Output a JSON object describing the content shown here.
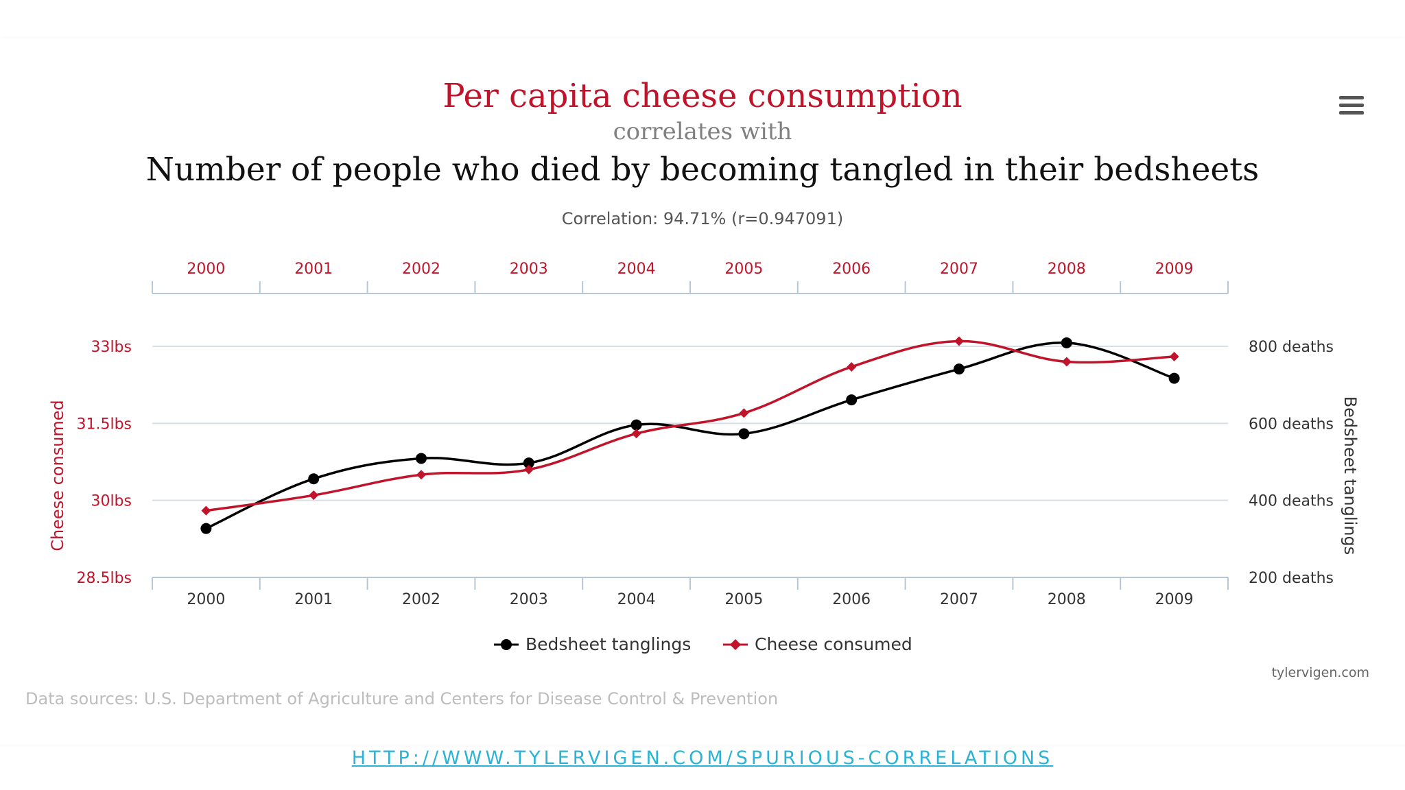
{
  "title": {
    "main": "Per capita cheese consumption",
    "connector": "correlates with",
    "second": "Number of people who died by becoming tangled in their bedsheets",
    "correlation": "Correlation: 94.71% (r=0.947091)"
  },
  "menu_icon": "hamburger-menu-icon",
  "credit": "tylervigen.com",
  "sources": "Data sources: U.S. Department of Agriculture and Centers for Disease Control & Prevention",
  "url": "HTTP://WWW.TYLERVIGEN.COM/SPURIOUS-CORRELATIONS",
  "colors": {
    "cheese": "#c0142b",
    "bedsheet": "#000000",
    "grid": "#d8dfe8",
    "axis": "#b7c7d6"
  },
  "chart_data": {
    "type": "line",
    "categories": [
      "2000",
      "2001",
      "2002",
      "2003",
      "2004",
      "2005",
      "2006",
      "2007",
      "2008",
      "2009"
    ],
    "series": [
      {
        "name": "Bedsheet tanglings",
        "axis": "right",
        "color": "#000000",
        "marker": "circle",
        "values": [
          327,
          456,
          509,
          497,
          596,
          573,
          661,
          741,
          809,
          717
        ]
      },
      {
        "name": "Cheese consumed",
        "axis": "left",
        "color": "#c0142b",
        "marker": "diamond",
        "values": [
          29.8,
          30.1,
          30.5,
          30.6,
          31.3,
          31.7,
          32.6,
          33.1,
          32.7,
          32.8
        ]
      }
    ],
    "y_left": {
      "label": "Cheese consumed",
      "ticks": [
        28.5,
        30,
        31.5,
        33
      ],
      "tick_labels": [
        "28.5lbs",
        "30lbs",
        "31.5lbs",
        "33lbs"
      ],
      "range": [
        28.5,
        33
      ]
    },
    "y_right": {
      "label": "Bedsheet tanglings",
      "ticks": [
        200,
        400,
        600,
        800
      ],
      "tick_labels": [
        "200 deaths",
        "400 deaths",
        "600 deaths",
        "800 deaths"
      ],
      "range": [
        200,
        800
      ]
    },
    "x_top_labels": [
      "2000",
      "2001",
      "2002",
      "2003",
      "2004",
      "2005",
      "2006",
      "2007",
      "2008",
      "2009"
    ],
    "x_bottom_labels": [
      "2000",
      "2001",
      "2002",
      "2003",
      "2004",
      "2005",
      "2006",
      "2007",
      "2008",
      "2009"
    ],
    "legend": [
      "Bedsheet tanglings",
      "Cheese consumed"
    ],
    "grid": true
  }
}
